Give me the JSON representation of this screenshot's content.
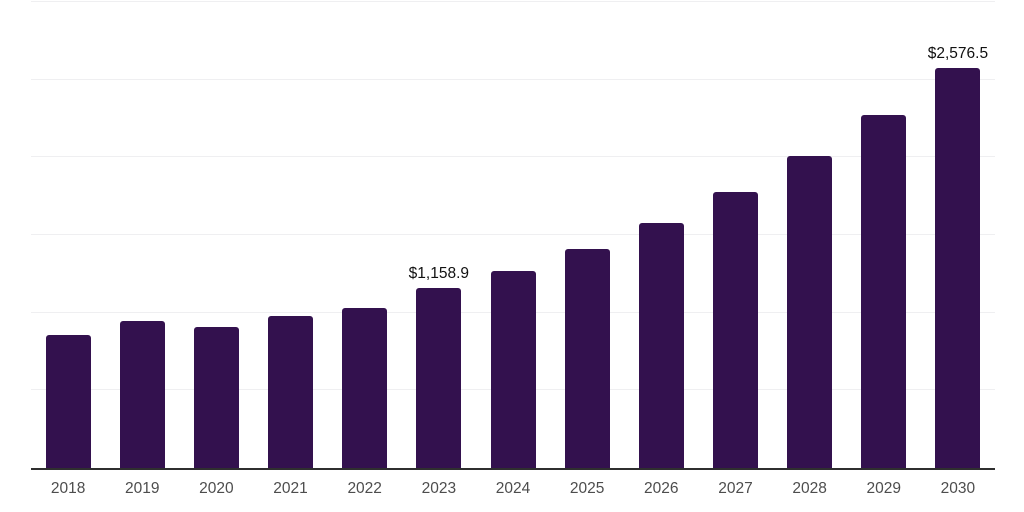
{
  "chart_data": {
    "type": "bar",
    "title": "",
    "xlabel": "",
    "ylabel": "",
    "categories": [
      "2018",
      "2019",
      "2020",
      "2021",
      "2022",
      "2023",
      "2024",
      "2025",
      "2026",
      "2027",
      "2028",
      "2029",
      "2030"
    ],
    "values": [
      855,
      945,
      907,
      978,
      1030,
      1158.9,
      1269,
      1408,
      1575,
      1774,
      2008,
      2272,
      2576.5
    ],
    "value_labels": {
      "2023": "$1,158.9",
      "2030": "$2,576.5"
    },
    "ylim": [
      0,
      3000
    ],
    "gridline_step": 500,
    "grid": "horizontal-only",
    "y_tick_labels_visible": false,
    "legend_position": "none",
    "colors": {
      "bar_fill": "#33114e",
      "gridline": "#efeff1",
      "axis_line": "#2f2f2f",
      "tick_label": "#4d4d4d",
      "value_label": "#111111",
      "background": "#ffffff"
    }
  }
}
